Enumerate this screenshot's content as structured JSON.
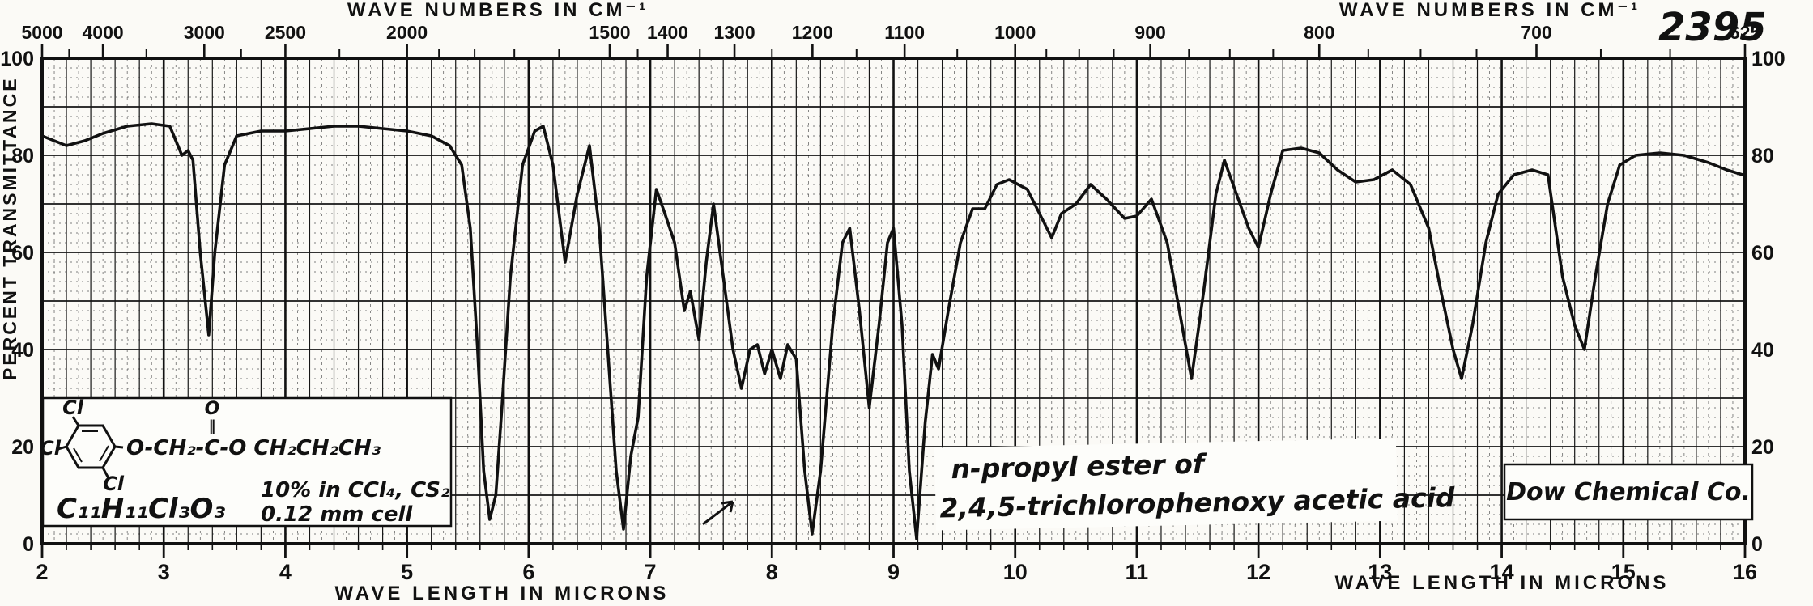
{
  "chart_data": {
    "type": "line",
    "title_top_axis": "WAVE NUMBERS IN CM⁻¹",
    "title_bottom_axis": "WAVE LENGTH IN MICRONS",
    "ylabel": "PERCENT TRANSMITTANCE",
    "x_unit_bottom": "microns",
    "x_unit_top": "cm-1",
    "xlim_microns": [
      2,
      16
    ],
    "ylim_percent": [
      0,
      100
    ],
    "grid": "fine graph paper; minor 0.1 micron / 2 percent, major 0.2 micron / 10 percent",
    "legend_position": "none",
    "y_ticks": [
      100,
      80,
      60,
      40,
      20,
      0
    ],
    "x_ticks_microns": [
      2,
      3,
      4,
      5,
      6,
      7,
      8,
      9,
      10,
      11,
      12,
      13,
      14,
      15,
      16
    ],
    "wavenumber_major_ticks": [
      5000,
      4000,
      3000,
      2500,
      2000,
      1500,
      1400,
      1300,
      1200,
      1100,
      1000,
      900,
      800,
      700,
      625
    ],
    "wavenumber_minor_ticks": [
      4500,
      3500,
      2750,
      2250,
      1900,
      1800,
      1700,
      1600,
      1450,
      1350,
      1250,
      1150,
      1050,
      975,
      950,
      925,
      875,
      850,
      825,
      775,
      750,
      725,
      675,
      650
    ],
    "major_absorption_minima_microns": [
      3.38,
      5.68,
      6.3,
      6.78,
      7.75,
      8.33,
      9.19,
      11.45,
      12.0,
      13.67,
      14.68
    ],
    "series": [
      {
        "name": "IR transmittance, n-propyl 2,4,5-trichlorophenoxyacetate (10% in CCl4/CS2, 0.12 mm cell)",
        "points_micron_percentT": [
          [
            2.0,
            84
          ],
          [
            2.1,
            83
          ],
          [
            2.2,
            82
          ],
          [
            2.35,
            83
          ],
          [
            2.5,
            84.5
          ],
          [
            2.7,
            86
          ],
          [
            2.9,
            86.5
          ],
          [
            3.05,
            86
          ],
          [
            3.1,
            83
          ],
          [
            3.15,
            80
          ],
          [
            3.2,
            81
          ],
          [
            3.24,
            79
          ],
          [
            3.3,
            60
          ],
          [
            3.37,
            43
          ],
          [
            3.42,
            60
          ],
          [
            3.5,
            78
          ],
          [
            3.6,
            84
          ],
          [
            3.8,
            85
          ],
          [
            4.0,
            85
          ],
          [
            4.2,
            85.5
          ],
          [
            4.4,
            86
          ],
          [
            4.6,
            86
          ],
          [
            4.8,
            85.5
          ],
          [
            5.0,
            85
          ],
          [
            5.2,
            84
          ],
          [
            5.35,
            82
          ],
          [
            5.45,
            78
          ],
          [
            5.52,
            65
          ],
          [
            5.58,
            40
          ],
          [
            5.63,
            15
          ],
          [
            5.68,
            5
          ],
          [
            5.73,
            10
          ],
          [
            5.78,
            28
          ],
          [
            5.85,
            55
          ],
          [
            5.95,
            78
          ],
          [
            6.05,
            85
          ],
          [
            6.12,
            86
          ],
          [
            6.2,
            78
          ],
          [
            6.3,
            58
          ],
          [
            6.4,
            72
          ],
          [
            6.5,
            82
          ],
          [
            6.58,
            65
          ],
          [
            6.65,
            40
          ],
          [
            6.72,
            15
          ],
          [
            6.78,
            3
          ],
          [
            6.84,
            18
          ],
          [
            6.9,
            26
          ],
          [
            6.97,
            55
          ],
          [
            7.05,
            73
          ],
          [
            7.12,
            68
          ],
          [
            7.2,
            62
          ],
          [
            7.28,
            48
          ],
          [
            7.33,
            52
          ],
          [
            7.4,
            42
          ],
          [
            7.46,
            58
          ],
          [
            7.52,
            70
          ],
          [
            7.6,
            55
          ],
          [
            7.68,
            40
          ],
          [
            7.75,
            32
          ],
          [
            7.82,
            40
          ],
          [
            7.88,
            41
          ],
          [
            7.94,
            35
          ],
          [
            8.0,
            40
          ],
          [
            8.07,
            34
          ],
          [
            8.13,
            41
          ],
          [
            8.2,
            38
          ],
          [
            8.27,
            15
          ],
          [
            8.33,
            2
          ],
          [
            8.4,
            15
          ],
          [
            8.5,
            45
          ],
          [
            8.58,
            62
          ],
          [
            8.64,
            65
          ],
          [
            8.72,
            48
          ],
          [
            8.8,
            28
          ],
          [
            8.88,
            45
          ],
          [
            8.95,
            62
          ],
          [
            9.0,
            65
          ],
          [
            9.07,
            45
          ],
          [
            9.13,
            15
          ],
          [
            9.19,
            1
          ],
          [
            9.26,
            25
          ],
          [
            9.32,
            39
          ],
          [
            9.37,
            36
          ],
          [
            9.45,
            48
          ],
          [
            9.55,
            62
          ],
          [
            9.65,
            69
          ],
          [
            9.75,
            69
          ],
          [
            9.85,
            74
          ],
          [
            9.95,
            75
          ],
          [
            10.1,
            73
          ],
          [
            10.2,
            68
          ],
          [
            10.3,
            63
          ],
          [
            10.38,
            68
          ],
          [
            10.5,
            70
          ],
          [
            10.62,
            74
          ],
          [
            10.75,
            71
          ],
          [
            10.9,
            67
          ],
          [
            11.0,
            67.5
          ],
          [
            11.12,
            71
          ],
          [
            11.25,
            62
          ],
          [
            11.35,
            48
          ],
          [
            11.45,
            34
          ],
          [
            11.55,
            52
          ],
          [
            11.65,
            72
          ],
          [
            11.72,
            79
          ],
          [
            11.82,
            72
          ],
          [
            11.92,
            65
          ],
          [
            12.0,
            61
          ],
          [
            12.1,
            72
          ],
          [
            12.2,
            81
          ],
          [
            12.35,
            81.5
          ],
          [
            12.5,
            80.5
          ],
          [
            12.65,
            77
          ],
          [
            12.8,
            74.5
          ],
          [
            12.95,
            75
          ],
          [
            13.1,
            77
          ],
          [
            13.25,
            74
          ],
          [
            13.4,
            65
          ],
          [
            13.5,
            52
          ],
          [
            13.6,
            40
          ],
          [
            13.67,
            34
          ],
          [
            13.76,
            45
          ],
          [
            13.87,
            62
          ],
          [
            13.97,
            72
          ],
          [
            14.1,
            76
          ],
          [
            14.25,
            77
          ],
          [
            14.38,
            76
          ],
          [
            14.5,
            55
          ],
          [
            14.6,
            45
          ],
          [
            14.68,
            40
          ],
          [
            14.77,
            55
          ],
          [
            14.87,
            70
          ],
          [
            14.97,
            78
          ],
          [
            15.1,
            80
          ],
          [
            15.3,
            80.5
          ],
          [
            15.5,
            80
          ],
          [
            15.7,
            78.5
          ],
          [
            15.85,
            77
          ],
          [
            15.98,
            76
          ]
        ]
      }
    ]
  },
  "annotations": {
    "spectrum_number": "2395",
    "structure_box": {
      "substituent_top": "Cl",
      "substituent_left": "Cl",
      "substituent_bottom": "Cl",
      "chain": "O-CH₂-C-O CH₂CH₂CH₃",
      "carbonyl_oxygen": "O",
      "double_bond_mark": "‖",
      "formula": "C₁₁H₁₁Cl₃O₃",
      "conditions_line1": "10% in CCl₄, CS₂",
      "conditions_line2": "0.12 mm cell"
    },
    "compound_name_line1": "n-propyl ester of",
    "compound_name_line2": "2,4,5-trichlorophenoxy acetic acid",
    "company": "Dow Chemical Co."
  },
  "colors": {
    "ink": "#111111",
    "grid_minor": "#555555",
    "grid_major": "#161616",
    "paper": "#fbfaf6"
  }
}
